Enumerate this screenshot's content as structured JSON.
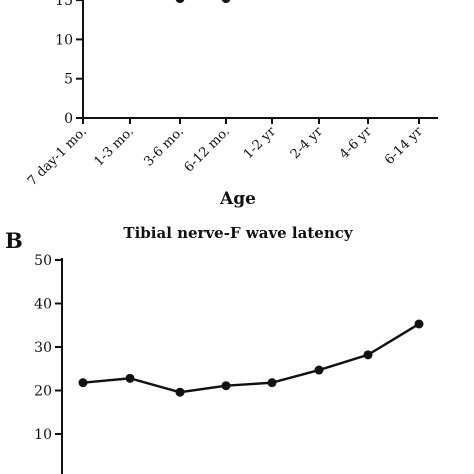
{
  "charts": [
    {
      "panel": "",
      "chart_data": {
        "type": "line",
        "title": "",
        "xlabel": "Age",
        "ylabel": "",
        "categories": [
          "7 day-1 mo.",
          "1-3 mo.",
          "3-6 mo.",
          "6-12 mo.",
          "1-2 yr",
          "2-4 yr",
          "4-6 yr",
          "6-14 yr"
        ],
        "series": [
          {
            "values": [
              null,
              null,
              15.2,
              15.2,
              null,
              null,
              null,
              null
            ]
          }
        ],
        "ylim": [
          0,
          20
        ],
        "yticks": [
          0,
          5,
          10,
          15
        ],
        "ytick_labels": [
          "0",
          "5",
          "10",
          "15"
        ],
        "grid": false,
        "legend": "none"
      }
    },
    {
      "panel": "B",
      "chart_data": {
        "type": "line",
        "title": "Tibial nerve-F wave latency",
        "xlabel": "",
        "ylabel": "",
        "categories": [
          "7 day-1 mo.",
          "1-3 mo.",
          "3-6 mo.",
          "6-12 mo.",
          "1-2 yr",
          "2-4 yr",
          "4-6 yr",
          "6-14 yr"
        ],
        "series": [
          {
            "values": [
              21.8,
              22.8,
              19.6,
              21.1,
              21.8,
              24.7,
              28.2,
              35.3
            ]
          }
        ],
        "ylim": [
          0,
          50
        ],
        "yticks": [
          10,
          20,
          30,
          40,
          50
        ],
        "ytick_labels": [
          "10",
          "20",
          "30",
          "40",
          "50"
        ],
        "grid": false,
        "legend": "none"
      }
    }
  ]
}
